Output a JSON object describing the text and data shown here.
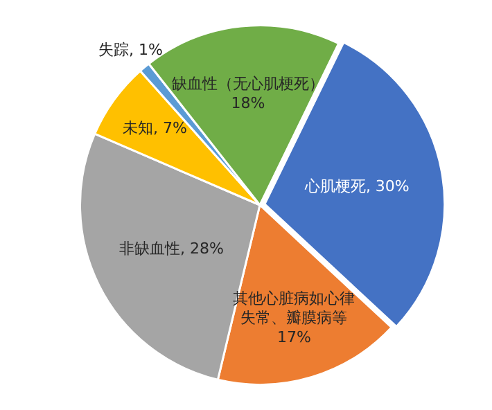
{
  "chart_data": {
    "type": "pie",
    "categories": [
      "心肌梗死",
      "其他心脏病如心律失常、瓣膜病等",
      "非缺血性",
      "未知",
      "失踪",
      "缺血性（无心肌梗死）"
    ],
    "values": [
      30,
      17,
      28,
      7,
      1,
      18
    ],
    "colors": [
      "#4472c4",
      "#ed7d31",
      "#a5a5a5",
      "#ffc000",
      "#5b9bd5",
      "#70ad47"
    ],
    "value_labels": [
      ", 30%",
      "17%",
      ", 28%",
      ", 7%",
      ", 1%",
      "18%"
    ],
    "legend": false
  }
}
